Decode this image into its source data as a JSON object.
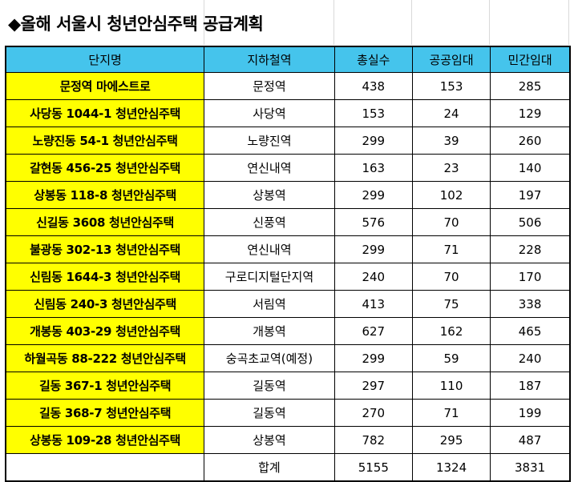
{
  "title": "◆올해 서울시 청년안심주택 공급계획",
  "columns": [
    "단지명",
    "지하철역",
    "총실수",
    "공공임대",
    "민간임대"
  ],
  "rows": [
    {
      "name": "문정역 마에스트로",
      "station": "문정역",
      "total": "438",
      "public": "153",
      "private": "285"
    },
    {
      "name": "사당동 1044-1 청년안심주택",
      "station": "사당역",
      "total": "153",
      "public": "24",
      "private": "129"
    },
    {
      "name": "노량진동 54-1 청년안심주택",
      "station": "노량진역",
      "total": "299",
      "public": "39",
      "private": "260"
    },
    {
      "name": "갈현동 456-25 청년안심주택",
      "station": "연신내역",
      "total": "163",
      "public": "23",
      "private": "140"
    },
    {
      "name": "상봉동 118-8 청년안심주택",
      "station": "상봉역",
      "total": "299",
      "public": "102",
      "private": "197"
    },
    {
      "name": "신길동 3608 청년안심주택",
      "station": "신풍역",
      "total": "576",
      "public": "70",
      "private": "506"
    },
    {
      "name": "불광동 302-13 청년안심주택",
      "station": "연신내역",
      "total": "299",
      "public": "71",
      "private": "228"
    },
    {
      "name": "신림동 1644-3 청년안심주택",
      "station": "구로디지털단지역",
      "total": "240",
      "public": "70",
      "private": "170"
    },
    {
      "name": "신림동 240-3 청년안심주택",
      "station": "서림역",
      "total": "413",
      "public": "75",
      "private": "338"
    },
    {
      "name": "개봉동 403-29 청년안심주택",
      "station": "개봉역",
      "total": "627",
      "public": "162",
      "private": "465"
    },
    {
      "name": "하월곡동 88-222 청년안심주택",
      "station": "숭곡초교역(예정)",
      "total": "299",
      "public": "59",
      "private": "240"
    },
    {
      "name": "길동 367-1 청년안심주택",
      "station": "길동역",
      "total": "297",
      "public": "110",
      "private": "187"
    },
    {
      "name": "길동 368-7 청년안심주택",
      "station": "길동역",
      "total": "270",
      "public": "71",
      "private": "199"
    },
    {
      "name": "상봉동 109-28 청년안심주택",
      "station": "상봉역",
      "total": "782",
      "public": "295",
      "private": "487"
    }
  ],
  "totals": {
    "label": "합계",
    "total": "5155",
    "public": "1324",
    "private": "3831"
  },
  "colors": {
    "header_bg": "#45c4ec",
    "name_bg": "#ffff00"
  }
}
